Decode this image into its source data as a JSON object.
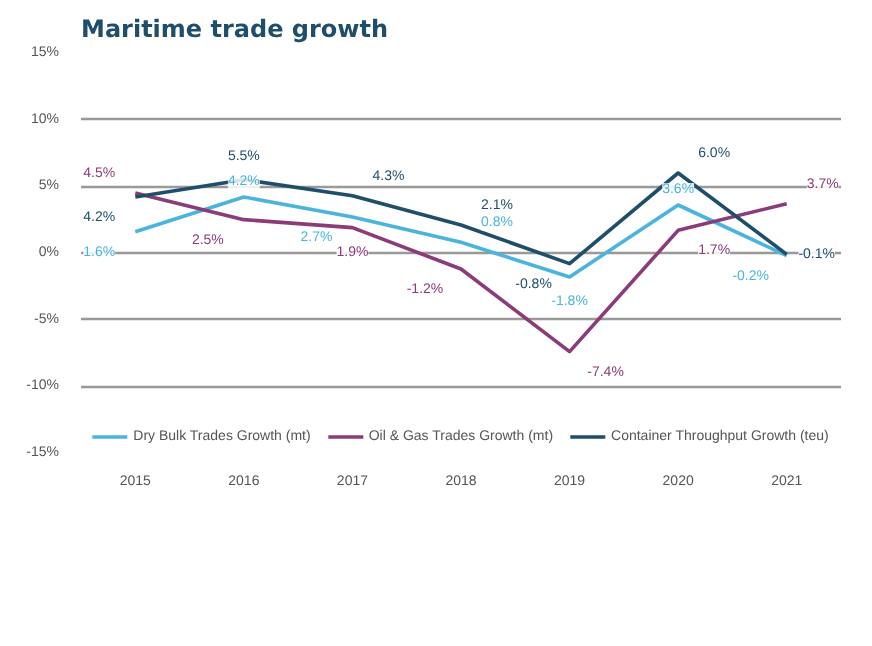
{
  "chart_data": {
    "type": "line",
    "title": "Maritime trade growth",
    "categories": [
      "2015",
      "2016",
      "2017",
      "2018",
      "2019",
      "2020",
      "2021"
    ],
    "series": [
      {
        "name": "Dry Bulk Trades Growth (mt)",
        "color": "#4bb4de",
        "values": [
          1.6,
          4.2,
          2.7,
          0.8,
          -1.8,
          3.6,
          -0.2
        ],
        "value_labels": [
          "1.6%",
          "4.2%",
          "2.7%",
          "0.8%",
          "-1.8%",
          "3.6%",
          "-0.2%"
        ]
      },
      {
        "name": "Oil & Gas Trades Growth (mt)",
        "color": "#8b3a7a",
        "values": [
          4.5,
          2.5,
          1.9,
          -1.2,
          -7.4,
          1.7,
          3.7
        ],
        "value_labels": [
          "4.5%",
          "2.5%",
          "1.9%",
          "-1.2%",
          "-7.4%",
          "1.7%",
          "3.7%"
        ]
      },
      {
        "name": "Container Throughput Growth (teu)",
        "color": "#1f4e6b",
        "values": [
          4.2,
          5.5,
          4.3,
          2.1,
          -0.8,
          6.0,
          -0.1
        ],
        "value_labels": [
          "4.2%",
          "5.5%",
          "4.3%",
          "2.1%",
          "-0.8%",
          "6.0%",
          "-0.1%"
        ]
      }
    ],
    "ylim": [
      -15,
      15
    ],
    "yticks": [
      {
        "value": 15,
        "label": "15%"
      },
      {
        "value": 10,
        "label": "10%"
      },
      {
        "value": 5,
        "label": "5%"
      },
      {
        "value": 0,
        "label": "0%"
      },
      {
        "value": -5,
        "label": "-5%"
      },
      {
        "value": -10,
        "label": "-10%"
      },
      {
        "value": -15,
        "label": "-15%"
      }
    ],
    "grid": "y",
    "legend": "bottom",
    "marker": "none",
    "line_style": "solid"
  }
}
